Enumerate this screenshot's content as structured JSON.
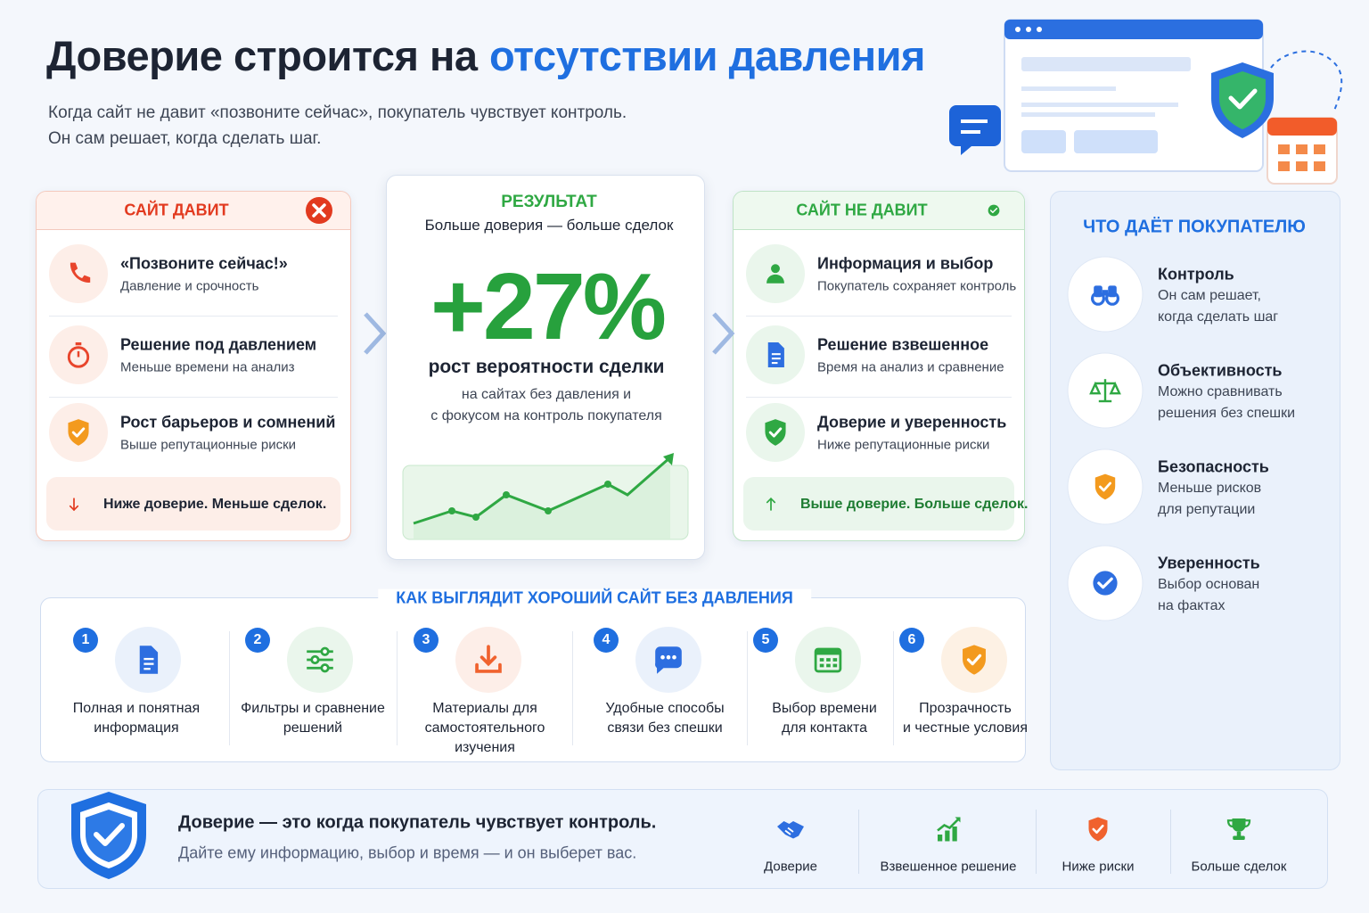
{
  "header": {
    "title_dark": "Доверие строится на",
    "title_accent": "отсутствии давления",
    "subtitle": [
      "Когда сайт не давит «позвоните сейчас», покупатель чувствует контроль.",
      "Он сам решает, когда сделать шаг."
    ]
  },
  "pressure": {
    "title": "САЙТ ДАВИТ",
    "items": [
      {
        "title": "«Позвоните сейчас!»",
        "text": "Давление и срочность"
      },
      {
        "title": "Решение под давлением",
        "text": "Меньше времени на анализ"
      },
      {
        "title": "Рост барьеров и сомнений",
        "text": "Выше репутационные риски"
      }
    ],
    "footer": "Ниже доверие. Меньше сделок."
  },
  "result": {
    "label": "РЕЗУЛЬТАТ",
    "subtitle": "Больше доверия — больше сделок",
    "value": "+27%",
    "caption": "рост вероятности сделки",
    "note": [
      "на сайтах без давления и",
      "с фокусом на контроль покупателя"
    ]
  },
  "no_pressure": {
    "title": "САЙТ НЕ ДАВИТ",
    "items": [
      {
        "title": "Информация и выбор",
        "text": "Покупатель сохраняет контроль"
      },
      {
        "title": "Решение взвешенное",
        "text": "Время на анализ и сравнение"
      },
      {
        "title": "Доверие и уверенность",
        "text": "Ниже репутационные риски"
      }
    ],
    "footer": "Выше доверие. Больше сделок."
  },
  "benefits": {
    "title": "ЧТО ДАЁТ ПОКУПАТЕЛЮ",
    "items": [
      {
        "title": "Контроль",
        "lines": [
          "Он сам решает,",
          "когда сделать шаг"
        ]
      },
      {
        "title": "Объективность",
        "lines": [
          "Можно сравнивать",
          "решения без спешки"
        ]
      },
      {
        "title": "Безопасность",
        "lines": [
          "Меньше рисков",
          "для репутации"
        ]
      },
      {
        "title": "Уверенность",
        "lines": [
          "Выбор основан",
          "на фактах"
        ]
      }
    ]
  },
  "good_site": {
    "title": "КАК ВЫГЛЯДИТ ХОРОШИЙ САЙТ БЕЗ ДАВЛЕНИЯ",
    "steps": [
      {
        "number": "1",
        "lines": [
          "Полная и понятная",
          "информация"
        ]
      },
      {
        "number": "2",
        "lines": [
          "Фильтры и сравнение",
          "решений"
        ]
      },
      {
        "number": "3",
        "lines": [
          "Материалы для",
          "самостоятельного",
          "изучения"
        ]
      },
      {
        "number": "4",
        "lines": [
          "Удобные способы",
          "связи без спешки"
        ]
      },
      {
        "number": "5",
        "lines": [
          "Выбор времени",
          "для контакта"
        ]
      },
      {
        "number": "6",
        "lines": [
          "Прозрачность",
          "и честные условия"
        ]
      }
    ]
  },
  "footer": {
    "title": "Доверие — это когда покупатель чувствует контроль.",
    "text": "Дайте ему информацию, выбор и время — и он выберет вас.",
    "badges": [
      "Доверие",
      "Взвешенное решение",
      "Ниже риски",
      "Больше сделок"
    ]
  }
}
